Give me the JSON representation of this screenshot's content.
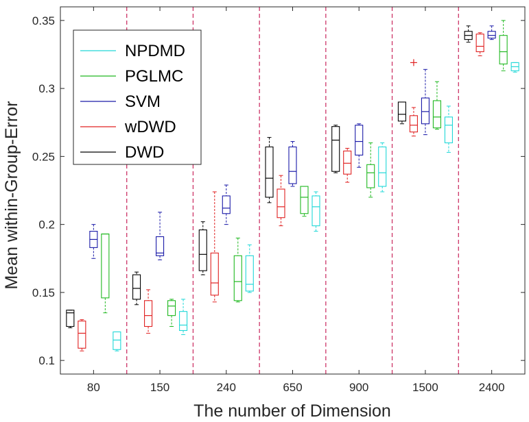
{
  "chart_data": {
    "type": "boxplot",
    "xlabel": "The number of Dimension",
    "ylabel": "Mean within-Group-Error",
    "ylim": [
      0.09,
      0.36
    ],
    "yticks": [
      0.1,
      0.15,
      0.2,
      0.25,
      0.3,
      0.35
    ],
    "ytick_labels": [
      "0.1",
      "0.15",
      "0.2",
      "0.25",
      "0.3",
      "0.35"
    ],
    "categories": [
      "80",
      "150",
      "240",
      "650",
      "900",
      "1500",
      "2400"
    ],
    "legend_position": "top-left",
    "grid": false,
    "separator_color": "#cc3366",
    "series": [
      {
        "name": "DWD",
        "color": "#000000",
        "boxes": [
          {
            "min": 0.124,
            "q1": 0.125,
            "median": 0.135,
            "q3": 0.137,
            "max": 0.137,
            "outliers": []
          },
          {
            "min": 0.141,
            "q1": 0.145,
            "median": 0.153,
            "q3": 0.163,
            "max": 0.165,
            "outliers": []
          },
          {
            "min": 0.163,
            "q1": 0.166,
            "median": 0.178,
            "q3": 0.196,
            "max": 0.202,
            "outliers": []
          },
          {
            "min": 0.216,
            "q1": 0.22,
            "median": 0.234,
            "q3": 0.257,
            "max": 0.264,
            "outliers": []
          },
          {
            "min": 0.238,
            "q1": 0.239,
            "median": 0.262,
            "q3": 0.272,
            "max": 0.273,
            "outliers": []
          },
          {
            "min": 0.274,
            "q1": 0.276,
            "median": 0.281,
            "q3": 0.29,
            "max": 0.29,
            "outliers": []
          },
          {
            "min": 0.334,
            "q1": 0.336,
            "median": 0.339,
            "q3": 0.342,
            "max": 0.346,
            "outliers": []
          }
        ]
      },
      {
        "name": "wDWD",
        "color": "#e02020",
        "boxes": [
          {
            "min": 0.107,
            "q1": 0.109,
            "median": 0.12,
            "q3": 0.129,
            "max": 0.13,
            "outliers": []
          },
          {
            "min": 0.12,
            "q1": 0.125,
            "median": 0.133,
            "q3": 0.144,
            "max": 0.152,
            "outliers": []
          },
          {
            "min": 0.143,
            "q1": 0.148,
            "median": 0.157,
            "q3": 0.179,
            "max": 0.224,
            "outliers": []
          },
          {
            "min": 0.199,
            "q1": 0.205,
            "median": 0.213,
            "q3": 0.226,
            "max": 0.236,
            "outliers": []
          },
          {
            "min": 0.231,
            "q1": 0.237,
            "median": 0.245,
            "q3": 0.254,
            "max": 0.256,
            "outliers": []
          },
          {
            "min": 0.265,
            "q1": 0.268,
            "median": 0.273,
            "q3": 0.28,
            "max": 0.286,
            "outliers": [
              0.319
            ]
          },
          {
            "min": 0.324,
            "q1": 0.327,
            "median": 0.331,
            "q3": 0.34,
            "max": 0.341,
            "outliers": []
          }
        ]
      },
      {
        "name": "SVM",
        "color": "#1a1aa8",
        "boxes": [
          {
            "min": 0.175,
            "q1": 0.183,
            "median": 0.189,
            "q3": 0.195,
            "max": 0.2,
            "outliers": []
          },
          {
            "min": 0.174,
            "q1": 0.177,
            "median": 0.179,
            "q3": 0.191,
            "max": 0.209,
            "outliers": []
          },
          {
            "min": 0.2,
            "q1": 0.208,
            "median": 0.212,
            "q3": 0.221,
            "max": 0.229,
            "outliers": []
          },
          {
            "min": 0.228,
            "q1": 0.23,
            "median": 0.239,
            "q3": 0.257,
            "max": 0.261,
            "outliers": []
          },
          {
            "min": 0.242,
            "q1": 0.251,
            "median": 0.261,
            "q3": 0.273,
            "max": 0.274,
            "outliers": []
          },
          {
            "min": 0.266,
            "q1": 0.274,
            "median": 0.283,
            "q3": 0.293,
            "max": 0.314,
            "outliers": []
          },
          {
            "min": 0.336,
            "q1": 0.337,
            "median": 0.339,
            "q3": 0.342,
            "max": 0.346,
            "outliers": []
          }
        ]
      },
      {
        "name": "PGLMC",
        "color": "#1fb81f",
        "boxes": [
          {
            "min": 0.135,
            "q1": 0.146,
            "median": 0.193,
            "q3": 0.193,
            "max": 0.193,
            "outliers": []
          },
          {
            "min": 0.125,
            "q1": 0.133,
            "median": 0.14,
            "q3": 0.144,
            "max": 0.145,
            "outliers": []
          },
          {
            "min": 0.143,
            "q1": 0.144,
            "median": 0.158,
            "q3": 0.177,
            "max": 0.19,
            "outliers": []
          },
          {
            "min": 0.206,
            "q1": 0.208,
            "median": 0.22,
            "q3": 0.228,
            "max": 0.228,
            "outliers": []
          },
          {
            "min": 0.22,
            "q1": 0.227,
            "median": 0.238,
            "q3": 0.244,
            "max": 0.26,
            "outliers": []
          },
          {
            "min": 0.27,
            "q1": 0.271,
            "median": 0.279,
            "q3": 0.291,
            "max": 0.305,
            "outliers": []
          },
          {
            "min": 0.313,
            "q1": 0.318,
            "median": 0.327,
            "q3": 0.339,
            "max": 0.35,
            "outliers": []
          }
        ]
      },
      {
        "name": "NPDMD",
        "color": "#20d8d8",
        "boxes": [
          {
            "min": 0.107,
            "q1": 0.108,
            "median": 0.115,
            "q3": 0.121,
            "max": 0.121,
            "outliers": []
          },
          {
            "min": 0.119,
            "q1": 0.122,
            "median": 0.126,
            "q3": 0.136,
            "max": 0.145,
            "outliers": []
          },
          {
            "min": 0.15,
            "q1": 0.151,
            "median": 0.156,
            "q3": 0.177,
            "max": 0.185,
            "outliers": []
          },
          {
            "min": 0.195,
            "q1": 0.199,
            "median": 0.213,
            "q3": 0.221,
            "max": 0.224,
            "outliers": []
          },
          {
            "min": 0.224,
            "q1": 0.228,
            "median": 0.238,
            "q3": 0.257,
            "max": 0.26,
            "outliers": []
          },
          {
            "min": 0.253,
            "q1": 0.26,
            "median": 0.273,
            "q3": 0.279,
            "max": 0.287,
            "outliers": []
          },
          {
            "min": 0.312,
            "q1": 0.313,
            "median": 0.316,
            "q3": 0.319,
            "max": 0.319,
            "outliers": []
          }
        ]
      }
    ],
    "legend_order": [
      "NPDMD",
      "PGLMC",
      "SVM",
      "wDWD",
      "DWD"
    ]
  }
}
